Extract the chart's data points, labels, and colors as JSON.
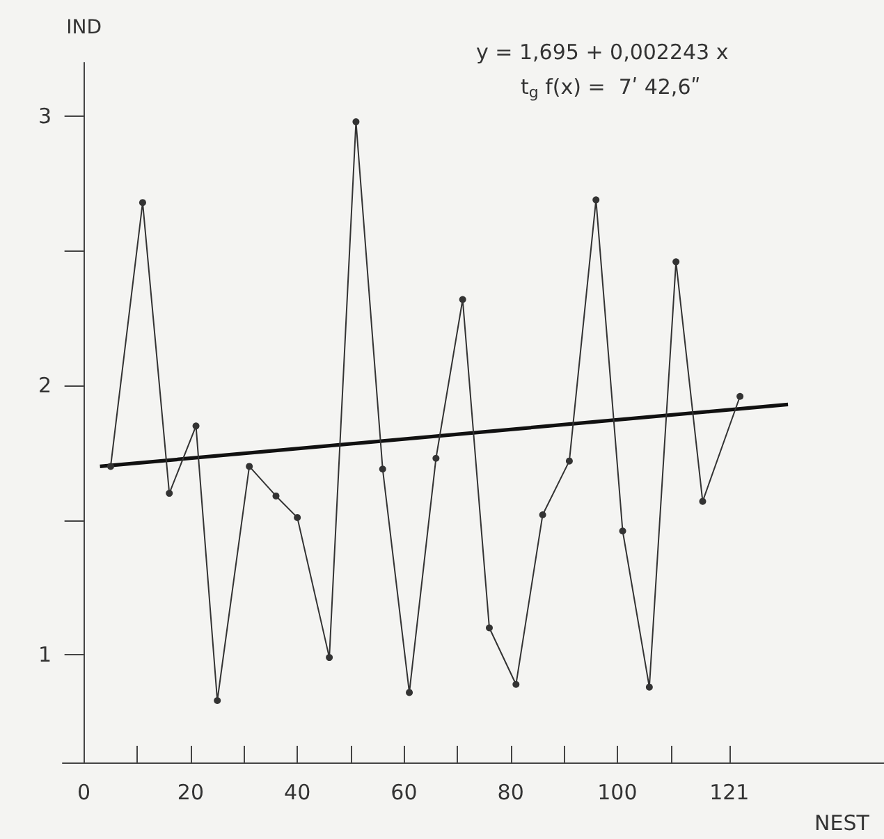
{
  "chart_data": {
    "type": "line",
    "xlabel": "NEST",
    "ylabel": "IND",
    "annotations": [
      "y = 1,695 + 0,002243 x",
      "t$_{g}$ f(x) =  7ʹ 42,6ʺ"
    ],
    "series": [
      {
        "color": "#333333",
        "marker": "circle",
        "x": [
          5,
          11,
          16,
          21,
          25,
          31,
          36,
          40,
          46,
          51,
          56,
          61,
          66,
          71,
          76,
          81,
          86,
          91,
          96,
          101,
          106,
          111,
          116,
          123
        ],
        "values": [
          1.7,
          2.68,
          1.6,
          1.85,
          0.83,
          1.7,
          1.59,
          1.51,
          0.99,
          2.98,
          1.69,
          0.86,
          1.73,
          2.32,
          1.1,
          0.89,
          1.52,
          1.72,
          2.69,
          1.46,
          0.88,
          2.46,
          1.57,
          1.96
        ]
      },
      {
        "type": "line",
        "color": "#111111",
        "marker": "none",
        "x": [
          3,
          132
        ],
        "values": [
          1.7,
          1.93
        ]
      }
    ],
    "xlim": [
      -4,
      150
    ],
    "ylim": [
      0.6,
      3.2
    ],
    "xticks": [
      0,
      {
        "value": 10,
        "label": null
      },
      20,
      {
        "value": 30,
        "label": null
      },
      40,
      {
        "value": 50,
        "label": null
      },
      60,
      {
        "value": 70,
        "label": null
      },
      80,
      {
        "value": 90,
        "label": null
      },
      100,
      {
        "value": 110,
        "label": null
      },
      121
    ],
    "yticks": [
      1,
      {
        "value": 1.5,
        "label": null
      },
      2,
      {
        "value": 2.5,
        "label": null
      },
      3
    ],
    "grid": false
  }
}
